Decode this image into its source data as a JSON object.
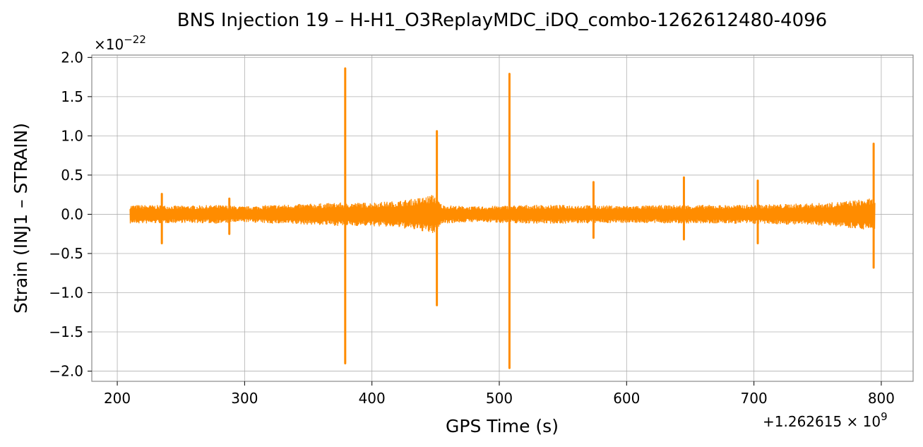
{
  "chart_data": {
    "type": "line",
    "title": "BNS Injection 19 – H-H1_O3ReplayMDC_iDQ_combo-1262612480-4096",
    "xlabel": "GPS Time (s)",
    "ylabel": "Strain (INJ1 – STRAIN)",
    "x_offset_label": "+1.262615×10⁹",
    "x_offset_base": "+1.262615 × 10",
    "x_offset_exp": "9",
    "y_scale_base": "×10",
    "y_scale_exp": "−22",
    "xlim": [
      180,
      825
    ],
    "ylim": [
      -2.13,
      2.03
    ],
    "xticks": [
      200,
      300,
      400,
      500,
      600,
      700,
      800
    ],
    "xtick_labels": [
      "200",
      "300",
      "400",
      "500",
      "600",
      "700",
      "800"
    ],
    "yticks": [
      -2.0,
      -1.5,
      -1.0,
      -0.5,
      0.0,
      0.5,
      1.0,
      1.5,
      2.0
    ],
    "ytick_labels": [
      "−2.0",
      "−1.5",
      "−1.0",
      "−0.5",
      "0.0",
      "0.5",
      "1.0",
      "1.5",
      "2.0"
    ],
    "grid": true,
    "color": "#ff8c00",
    "series": [
      {
        "x_start": 210,
        "x_end": 795,
        "band_envelope": [
          [
            210,
            0.12
          ],
          [
            225,
            0.12
          ],
          [
            250,
            0.11
          ],
          [
            280,
            0.12
          ],
          [
            300,
            0.1
          ],
          [
            320,
            0.12
          ],
          [
            340,
            0.13
          ],
          [
            360,
            0.14
          ],
          [
            375,
            0.15
          ],
          [
            395,
            0.15
          ],
          [
            420,
            0.17
          ],
          [
            440,
            0.22
          ],
          [
            449,
            0.26
          ],
          [
            455,
            0.12
          ],
          [
            480,
            0.1
          ],
          [
            500,
            0.11
          ],
          [
            520,
            0.12
          ],
          [
            560,
            0.12
          ],
          [
            600,
            0.11
          ],
          [
            640,
            0.12
          ],
          [
            680,
            0.12
          ],
          [
            720,
            0.13
          ],
          [
            760,
            0.15
          ],
          [
            790,
            0.2
          ],
          [
            795,
            0.2
          ]
        ],
        "spikes": [
          {
            "x": 235,
            "max": 0.26,
            "min": -0.37
          },
          {
            "x": 288,
            "max": 0.2,
            "min": -0.25
          },
          {
            "x": 379,
            "max": 1.86,
            "min": -1.9
          },
          {
            "x": 451,
            "max": 1.06,
            "min": -1.16
          },
          {
            "x": 508,
            "max": 1.79,
            "min": -1.96
          },
          {
            "x": 574,
            "max": 0.41,
            "min": -0.3
          },
          {
            "x": 645,
            "max": 0.47,
            "min": -0.32
          },
          {
            "x": 703,
            "max": 0.43,
            "min": -0.37
          },
          {
            "x": 794,
            "max": 0.9,
            "min": -0.68
          }
        ]
      }
    ]
  }
}
